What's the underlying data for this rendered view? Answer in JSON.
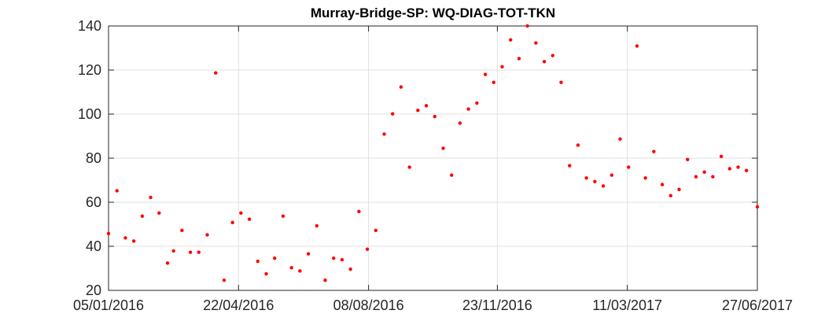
{
  "chart_data": {
    "type": "scatter",
    "title": "Murray-Bridge-SP: WQ-DIAG-TOT-TKN",
    "xlabel": "",
    "ylabel": "",
    "x_is_date": true,
    "xlim": [
      "2016-01-05",
      "2017-06-27"
    ],
    "ylim": [
      20,
      140
    ],
    "yticks": [
      20,
      40,
      60,
      80,
      100,
      120,
      140
    ],
    "xticks": [
      "2016-01-05",
      "2016-04-22",
      "2016-08-08",
      "2016-11-23",
      "2017-03-11",
      "2017-06-27"
    ],
    "xtick_labels": [
      "05/01/2016",
      "22/04/2016",
      "08/08/2016",
      "23/11/2016",
      "11/03/2017",
      "27/06/2017"
    ],
    "grid": true,
    "legend": "none",
    "marker_color": "#ff0000",
    "series": [
      {
        "points": [
          [
            "2016-01-05",
            45.8
          ],
          [
            "2016-01-12",
            65.2
          ],
          [
            "2016-01-19",
            43.8
          ],
          [
            "2016-01-26",
            42.4
          ],
          [
            "2016-02-02",
            53.7
          ],
          [
            "2016-02-09",
            62.2
          ],
          [
            "2016-02-16",
            55.1
          ],
          [
            "2016-02-23",
            32.4
          ],
          [
            "2016-02-28",
            37.9
          ],
          [
            "2016-03-06",
            47.2
          ],
          [
            "2016-03-13",
            37.3
          ],
          [
            "2016-03-20",
            37.3
          ],
          [
            "2016-03-27",
            45.2
          ],
          [
            "2016-04-03",
            118.7
          ],
          [
            "2016-04-10",
            24.6
          ],
          [
            "2016-04-17",
            50.8
          ],
          [
            "2016-04-24",
            55.1
          ],
          [
            "2016-05-01",
            52.3
          ],
          [
            "2016-05-08",
            33.2
          ],
          [
            "2016-05-15",
            27.5
          ],
          [
            "2016-05-22",
            34.6
          ],
          [
            "2016-05-29",
            53.7
          ],
          [
            "2016-06-05",
            30.3
          ],
          [
            "2016-06-12",
            28.8
          ],
          [
            "2016-06-19",
            36.6
          ],
          [
            "2016-06-26",
            49.3
          ],
          [
            "2016-07-03",
            24.6
          ],
          [
            "2016-07-10",
            34.6
          ],
          [
            "2016-07-17",
            33.9
          ],
          [
            "2016-07-24",
            29.6
          ],
          [
            "2016-07-31",
            55.8
          ],
          [
            "2016-08-07",
            38.7
          ],
          [
            "2016-08-14",
            47.2
          ],
          [
            "2016-08-21",
            90.9
          ],
          [
            "2016-08-28",
            100.1
          ],
          [
            "2016-09-04",
            112.3
          ],
          [
            "2016-09-11",
            75.9
          ],
          [
            "2016-09-18",
            101.7
          ],
          [
            "2016-09-25",
            103.8
          ],
          [
            "2016-10-02",
            98.9
          ],
          [
            "2016-10-09",
            84.5
          ],
          [
            "2016-10-16",
            72.3
          ],
          [
            "2016-10-23",
            95.9
          ],
          [
            "2016-10-30",
            102.3
          ],
          [
            "2016-11-06",
            105.0
          ],
          [
            "2016-11-13",
            118.0
          ],
          [
            "2016-11-20",
            114.4
          ],
          [
            "2016-11-27",
            121.5
          ],
          [
            "2016-12-04",
            133.7
          ],
          [
            "2016-12-11",
            125.2
          ],
          [
            "2016-12-18",
            140.0
          ],
          [
            "2016-12-25",
            132.3
          ],
          [
            "2017-01-01",
            123.8
          ],
          [
            "2017-01-08",
            126.6
          ],
          [
            "2017-01-15",
            114.4
          ],
          [
            "2017-01-22",
            76.6
          ],
          [
            "2017-01-29",
            85.9
          ],
          [
            "2017-02-05",
            71.0
          ],
          [
            "2017-02-12",
            69.4
          ],
          [
            "2017-02-19",
            67.4
          ],
          [
            "2017-02-26",
            72.3
          ],
          [
            "2017-03-05",
            88.7
          ],
          [
            "2017-03-12",
            75.9
          ],
          [
            "2017-03-19",
            130.9
          ],
          [
            "2017-03-26",
            71.0
          ],
          [
            "2017-04-02",
            83.0
          ],
          [
            "2017-04-09",
            68.0
          ],
          [
            "2017-04-16",
            63.0
          ],
          [
            "2017-04-23",
            65.8
          ],
          [
            "2017-04-30",
            79.4
          ],
          [
            "2017-05-07",
            71.6
          ],
          [
            "2017-05-14",
            73.7
          ],
          [
            "2017-05-21",
            71.6
          ],
          [
            "2017-05-28",
            80.8
          ],
          [
            "2017-06-04",
            75.2
          ],
          [
            "2017-06-11",
            75.9
          ],
          [
            "2017-06-18",
            74.4
          ],
          [
            "2017-06-27",
            57.9
          ]
        ]
      }
    ]
  }
}
